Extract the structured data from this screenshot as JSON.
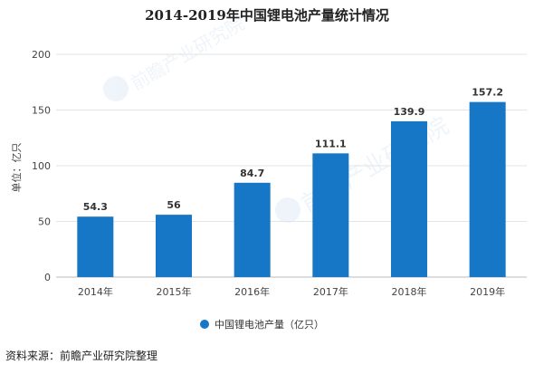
{
  "chart_data": {
    "type": "bar",
    "title": "2014-2019年中国锂电池产量统计情况",
    "ylabel": "单位：亿只",
    "xlabel": "",
    "categories": [
      "2014年",
      "2015年",
      "2016年",
      "2017年",
      "2018年",
      "2019年"
    ],
    "series": [
      {
        "name": "中国锂电池产量（亿只）",
        "values": [
          54.3,
          56,
          84.7,
          111.1,
          139.9,
          157.2
        ]
      }
    ],
    "value_labels": [
      "54.3",
      "56",
      "84.7",
      "111.1",
      "139.9",
      "157.2"
    ],
    "ylim": [
      0,
      200
    ],
    "yticks": [
      0,
      50,
      100,
      150,
      200
    ],
    "grid": true,
    "legend_position": "bottom",
    "bar_color": "#1577c6"
  },
  "watermark": "前瞻产业研究院",
  "source": "资料来源：前瞻产业研究院整理"
}
